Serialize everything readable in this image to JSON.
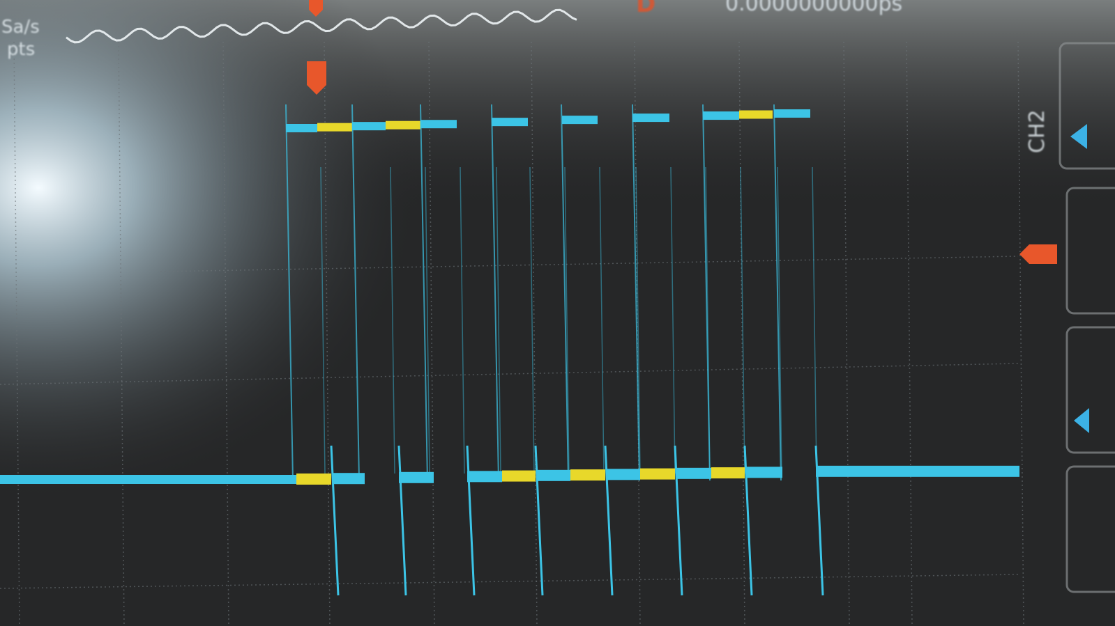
{
  "status": {
    "sample_rate_unit": "Sa/s",
    "memory_depth_unit": "pts",
    "horizontal_delay": "0.0000000000ps",
    "delay_marker": "D"
  },
  "channel": {
    "label": "CH2"
  },
  "markers": {
    "trigger_top": "T",
    "trigger_level": "T"
  },
  "colors": {
    "screen": "#2a2b2c",
    "grid": "#6d7478",
    "ch1": "#e8d82a",
    "ch2": "#3cc4e6",
    "trigger": "#e8572b"
  },
  "icons": {
    "channel_offset": "triangle-left-icon",
    "trigger": "trigger-flag-icon"
  }
}
